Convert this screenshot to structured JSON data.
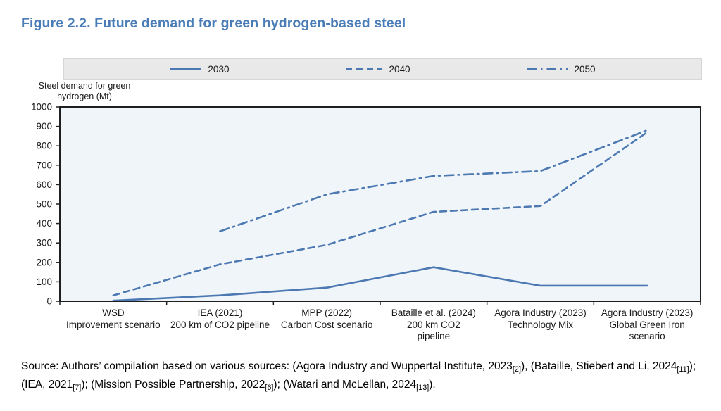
{
  "page": {
    "title": "Figure 2.2. Future demand for green hydrogen-based steel",
    "source_line1": "Source: Authors’ compilation based on various sources: (Agora Industry and Wuppertal Institute, 2023[2]), (Bataille, Stiebert and Li, 2024[11]);",
    "source_line2": "(IEA, 2021[7]); (Mission Possible Partnership, 2022[6]); (Watari and McLellan, 2024[13])."
  },
  "colors": {
    "title_blue": "#4a7db8",
    "series_blue": "#4d79b3",
    "plot_bg": "#f0f5f9",
    "legend_bg": "#e9e9e9",
    "axis_black": "#1f1f1f"
  },
  "chart_data": {
    "type": "line",
    "title": "Figure 2.2. Future demand for green hydrogen-based steel",
    "y_axis_title": "Steel demand for green\nhydrogen (Mt)",
    "xlabel": "",
    "ylabel": "Steel demand for green hydrogen (Mt)",
    "ylim": [
      0,
      1000
    ],
    "ytick_step": 100,
    "grid": false,
    "legend_position": "top",
    "categories": [
      "WSD\nImprovement scenario",
      "IEA (2021)\n200 km of CO2 pipeline",
      "MPP (2022)\nCarbon Cost scenario",
      "Bataille et al. (2024)\n200 km CO2\npipeline",
      "Agora Industry (2023)\nTechnology Mix",
      "Agora Industry (2023)\nGlobal Green Iron\nscenario"
    ],
    "series": [
      {
        "name": "2030",
        "style": "solid",
        "values": [
          3,
          30,
          70,
          175,
          80,
          80
        ]
      },
      {
        "name": "2040",
        "style": "dashed",
        "values": [
          30,
          190,
          290,
          460,
          490,
          870
        ]
      },
      {
        "name": "2050",
        "style": "dash-dot",
        "values": [
          null,
          360,
          550,
          645,
          670,
          880
        ]
      }
    ]
  }
}
